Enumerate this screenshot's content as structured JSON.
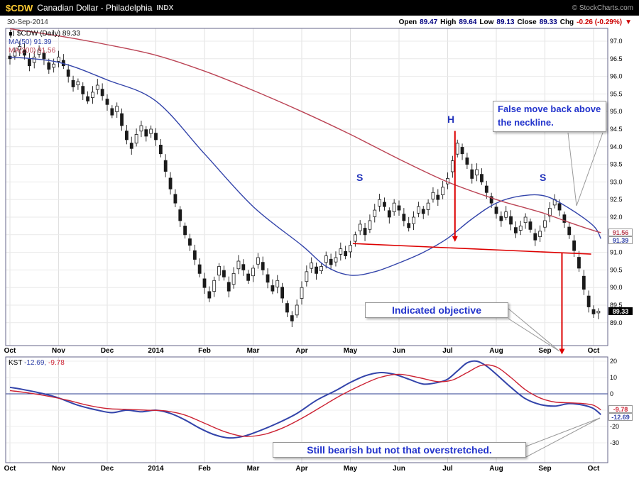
{
  "header": {
    "symbol": "$CDW",
    "name": "Canadian Dollar - Philadelphia",
    "exchange": "INDX",
    "copyright": "© StockCharts.com",
    "date": "30-Sep-2014",
    "quote": {
      "open_label": "Open",
      "open": "89.47",
      "high_label": "High",
      "high": "89.64",
      "low_label": "Low",
      "low": "89.13",
      "close_label": "Close",
      "close": "89.33",
      "chg_label": "Chg",
      "chg": "-0.26 (-0.29%)",
      "chg_arrow": "▼"
    }
  },
  "main_chart": {
    "legend": {
      "title": "$CDW (Daily) 89.33",
      "ma50": "MA(50) 91.39",
      "ma200": "MA(200) 91.56"
    },
    "tags": {
      "ma200": "91.56",
      "ma50": "91.39",
      "last": "89.33"
    }
  },
  "kst_panel": {
    "legend_label": "KST",
    "legend_v1": "-12.69,",
    "legend_v2": "-9.78",
    "tags": {
      "signal": "-9.78",
      "kst": "-12.69"
    }
  },
  "annotations": {
    "s_left": "S",
    "head": "H",
    "s_right": "S",
    "callout1": "False move back above the neckline.",
    "callout2": "Indicated objective",
    "callout3": "Still bearish  but not that overstretched."
  },
  "chart_data": [
    {
      "type": "candlestick",
      "title": "$CDW (Daily)",
      "last_close": 89.33,
      "ylim": [
        89.0,
        97.0
      ],
      "yticks": [
        "97.0",
        "96.5",
        "96.0",
        "95.5",
        "95.0",
        "94.5",
        "94.0",
        "93.5",
        "93.0",
        "92.5",
        "92.0",
        "91.5",
        "91.0",
        "90.5",
        "90.0",
        "89.5",
        "89.0"
      ],
      "x_months": [
        "Oct",
        "Nov",
        "Dec",
        "2014",
        "Feb",
        "Mar",
        "Apr",
        "May",
        "Jun",
        "Jul",
        "Aug",
        "Sep",
        "Oct"
      ],
      "points_per_month": 10,
      "candle_color": "#1a1a1a",
      "closes": [
        96.5,
        96.7,
        96.85,
        96.6,
        96.3,
        96.55,
        96.75,
        96.5,
        96.2,
        96.35,
        96.55,
        96.3,
        96.0,
        95.7,
        95.85,
        95.5,
        95.3,
        95.55,
        95.75,
        95.45,
        95.2,
        94.9,
        95.15,
        94.6,
        94.2,
        93.95,
        94.35,
        94.6,
        94.3,
        94.5,
        94.2,
        93.8,
        93.3,
        92.8,
        92.4,
        91.9,
        91.5,
        91.2,
        90.8,
        90.4,
        90.0,
        89.7,
        90.2,
        90.6,
        90.3,
        89.9,
        90.4,
        90.75,
        90.5,
        90.2,
        90.55,
        90.85,
        90.5,
        90.15,
        89.9,
        90.2,
        89.7,
        89.3,
        89.05,
        89.5,
        90.0,
        90.45,
        90.7,
        90.4,
        90.6,
        90.9,
        90.65,
        90.85,
        91.1,
        90.9,
        91.2,
        91.5,
        91.8,
        91.5,
        91.9,
        92.2,
        92.5,
        92.3,
        92.0,
        92.4,
        92.2,
        91.9,
        91.7,
        92.0,
        92.3,
        92.1,
        92.4,
        92.7,
        92.5,
        92.85,
        93.1,
        93.6,
        94.1,
        93.8,
        93.5,
        93.1,
        93.35,
        93.0,
        92.7,
        92.4,
        92.1,
        91.9,
        92.15,
        91.8,
        91.55,
        91.75,
        92.0,
        91.65,
        91.35,
        91.6,
        91.9,
        92.25,
        92.5,
        92.2,
        91.85,
        91.5,
        91.05,
        90.55,
        89.95,
        89.45,
        89.25,
        89.33
      ],
      "ma50": {
        "name": "MA(50)",
        "value": 91.39,
        "color": "#3344aa",
        "anchors": [
          [
            0,
            96.55
          ],
          [
            1,
            96.4
          ],
          [
            2,
            95.9
          ],
          [
            3,
            95.3
          ],
          [
            4,
            93.8
          ],
          [
            5,
            92.3
          ],
          [
            6,
            91.2
          ],
          [
            6.5,
            90.6
          ],
          [
            7,
            90.35
          ],
          [
            7.5,
            90.45
          ],
          [
            8,
            90.7
          ],
          [
            8.5,
            91.0
          ],
          [
            9,
            91.4
          ],
          [
            9.5,
            91.95
          ],
          [
            10,
            92.4
          ],
          [
            10.5,
            92.6
          ],
          [
            11,
            92.6
          ],
          [
            11.5,
            92.25
          ],
          [
            12,
            91.75
          ],
          [
            12.15,
            91.39
          ]
        ]
      },
      "ma200": {
        "name": "MA(200)",
        "value": 91.56,
        "color": "#bb4455",
        "anchors": [
          [
            0,
            97.35
          ],
          [
            1,
            97.15
          ],
          [
            2,
            96.9
          ],
          [
            3,
            96.6
          ],
          [
            4,
            96.15
          ],
          [
            5,
            95.6
          ],
          [
            6,
            95.0
          ],
          [
            7,
            94.35
          ],
          [
            8,
            93.65
          ],
          [
            9,
            93.0
          ],
          [
            10,
            92.5
          ],
          [
            10.5,
            92.3
          ],
          [
            11,
            92.1
          ],
          [
            11.5,
            91.85
          ],
          [
            12,
            91.62
          ],
          [
            12.15,
            91.56
          ]
        ]
      },
      "neckline": {
        "from": [
          7.05,
          91.25
        ],
        "to": [
          11.95,
          90.95
        ],
        "color": "#dd0000"
      },
      "arrows": [
        {
          "x": 9.15,
          "from": 94.45,
          "to": 91.3
        },
        {
          "x": 11.35,
          "from": 91.0,
          "to": 88.1
        }
      ]
    },
    {
      "type": "line",
      "name": "KST",
      "ylim": [
        -30,
        20
      ],
      "yticks": [
        "20",
        "10",
        "0",
        "-10",
        "-20",
        "-30"
      ],
      "zero_line": 0,
      "series": [
        {
          "name": "KST",
          "color": "#3344aa",
          "last": -12.69,
          "anchors": [
            [
              0,
              4
            ],
            [
              0.3,
              2.5
            ],
            [
              0.7,
              0
            ],
            [
              1,
              -2.5
            ],
            [
              1.4,
              -7
            ],
            [
              1.8,
              -10
            ],
            [
              2.1,
              -11.5
            ],
            [
              2.4,
              -10
            ],
            [
              2.7,
              -11
            ],
            [
              3.0,
              -10
            ],
            [
              3.3,
              -12
            ],
            [
              3.6,
              -16
            ],
            [
              3.9,
              -21
            ],
            [
              4.2,
              -25
            ],
            [
              4.5,
              -27
            ],
            [
              4.8,
              -26
            ],
            [
              5.1,
              -23
            ],
            [
              5.5,
              -18
            ],
            [
              5.9,
              -12
            ],
            [
              6.3,
              -4
            ],
            [
              6.7,
              2
            ],
            [
              7.0,
              7
            ],
            [
              7.3,
              11
            ],
            [
              7.6,
              13
            ],
            [
              7.9,
              12
            ],
            [
              8.2,
              9
            ],
            [
              8.5,
              6
            ],
            [
              8.8,
              7
            ],
            [
              9.0,
              9
            ],
            [
              9.2,
              14
            ],
            [
              9.4,
              19
            ],
            [
              9.6,
              20
            ],
            [
              9.8,
              17
            ],
            [
              10.0,
              12
            ],
            [
              10.3,
              4
            ],
            [
              10.6,
              -3
            ],
            [
              10.9,
              -6.5
            ],
            [
              11.2,
              -7.5
            ],
            [
              11.5,
              -6
            ],
            [
              11.8,
              -7
            ],
            [
              12.0,
              -9
            ],
            [
              12.15,
              -12.69
            ]
          ]
        },
        {
          "name": "Signal",
          "color": "#cc2233",
          "last": -9.78,
          "anchors": [
            [
              0,
              2
            ],
            [
              0.4,
              0.5
            ],
            [
              0.8,
              -1.5
            ],
            [
              1.2,
              -4
            ],
            [
              1.6,
              -7
            ],
            [
              2.0,
              -9
            ],
            [
              2.4,
              -9.5
            ],
            [
              2.8,
              -10
            ],
            [
              3.2,
              -10.5
            ],
            [
              3.6,
              -13
            ],
            [
              4.0,
              -18
            ],
            [
              4.4,
              -23
            ],
            [
              4.8,
              -26
            ],
            [
              5.2,
              -25
            ],
            [
              5.6,
              -21
            ],
            [
              6.0,
              -15
            ],
            [
              6.4,
              -8
            ],
            [
              6.8,
              -1
            ],
            [
              7.2,
              5
            ],
            [
              7.6,
              10
            ],
            [
              8.0,
              12
            ],
            [
              8.4,
              10
            ],
            [
              8.8,
              7.5
            ],
            [
              9.1,
              8.5
            ],
            [
              9.4,
              13
            ],
            [
              9.7,
              17.5
            ],
            [
              10.0,
              16.5
            ],
            [
              10.3,
              10
            ],
            [
              10.6,
              2.5
            ],
            [
              10.9,
              -2.5
            ],
            [
              11.2,
              -5
            ],
            [
              11.5,
              -5.5
            ],
            [
              11.8,
              -6
            ],
            [
              12.0,
              -7
            ],
            [
              12.15,
              -9.78
            ]
          ]
        }
      ]
    }
  ]
}
